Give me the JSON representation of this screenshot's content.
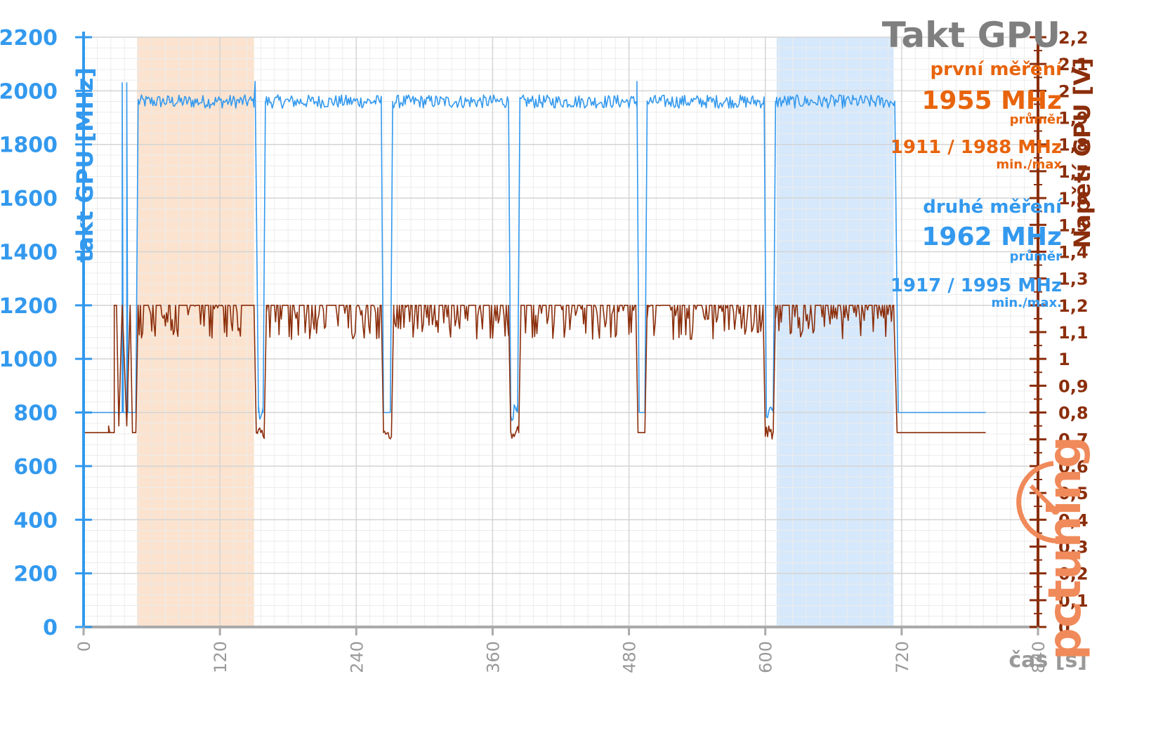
{
  "chart_data": {
    "type": "line",
    "title": "Takt GPU",
    "xlabel": "čas [s]",
    "ylabel_left": "takt GPU [MHz]",
    "ylabel_right": "Napětí GPU [V]",
    "xlim": [
      0,
      840
    ],
    "ylim_left": [
      0,
      2200
    ],
    "ylim_right": [
      0,
      2.2
    ],
    "x_ticks": [
      "0",
      "120",
      "240",
      "360",
      "480",
      "600",
      "720",
      "840"
    ],
    "y_ticks_left": [
      "0",
      "200",
      "400",
      "600",
      "800",
      "1000",
      "1200",
      "1400",
      "1600",
      "1800",
      "2000",
      "2200"
    ],
    "y_ticks_right": [
      "0",
      "0,1",
      "0,2",
      "0,3",
      "0,4",
      "0,5",
      "0,6",
      "0,7",
      "0,8",
      "0,9",
      "1",
      "1,1",
      "1,2",
      "1,3",
      "1,4",
      "1,5",
      "1,6",
      "1,7",
      "1,8",
      "1,9",
      "2",
      "2,1",
      "2,2"
    ],
    "grid": true,
    "highlight_bands": [
      {
        "x": [
          47,
          150
        ],
        "color": "#fbe3cf"
      },
      {
        "x": [
          610,
          713
        ],
        "color": "#d6e8fb"
      }
    ],
    "series": [
      {
        "axis": "left",
        "color": "#3399ee",
        "segments": [
          {
            "t0": 0,
            "t1": 46,
            "base": 800,
            "noise": 0,
            "spikes": [
              [
                34,
                2030
              ],
              [
                36,
                800
              ],
              [
                38,
                2030
              ],
              [
                40,
                800
              ]
            ]
          },
          {
            "t0": 46,
            "t1": 48,
            "ramp": [
              800,
              1960
            ]
          },
          {
            "t0": 48,
            "t1": 150,
            "base": 1960,
            "noise": 50
          },
          {
            "t0": 150,
            "t1": 154,
            "ramp": [
              1960,
              800
            ],
            "spikes": [
              [
                151,
                2035
              ]
            ]
          },
          {
            "t0": 154,
            "t1": 158,
            "base": 800,
            "noise": 60
          },
          {
            "t0": 158,
            "t1": 160,
            "ramp": [
              800,
              1960
            ]
          },
          {
            "t0": 160,
            "t1": 262,
            "base": 1960,
            "noise": 50
          },
          {
            "t0": 262,
            "t1": 264,
            "ramp": [
              1960,
              800
            ]
          },
          {
            "t0": 264,
            "t1": 270,
            "base": 800,
            "noise": 0
          },
          {
            "t0": 270,
            "t1": 272,
            "ramp": [
              800,
              1960
            ]
          },
          {
            "t0": 272,
            "t1": 374,
            "base": 1960,
            "noise": 50
          },
          {
            "t0": 374,
            "t1": 376,
            "ramp": [
              1960,
              800
            ]
          },
          {
            "t0": 376,
            "t1": 382,
            "base": 800,
            "noise": 60
          },
          {
            "t0": 382,
            "t1": 384,
            "ramp": [
              800,
              1960
            ]
          },
          {
            "t0": 384,
            "t1": 487,
            "base": 1960,
            "noise": 50
          },
          {
            "t0": 487,
            "t1": 489,
            "ramp": [
              1960,
              800
            ],
            "spikes": [
              [
                487,
                2035
              ]
            ]
          },
          {
            "t0": 489,
            "t1": 494,
            "base": 800,
            "noise": 0
          },
          {
            "t0": 494,
            "t1": 496,
            "ramp": [
              800,
              1960
            ]
          },
          {
            "t0": 496,
            "t1": 599,
            "base": 1960,
            "noise": 50
          },
          {
            "t0": 599,
            "t1": 601,
            "ramp": [
              1960,
              800
            ]
          },
          {
            "t0": 601,
            "t1": 607,
            "base": 800,
            "noise": 60
          },
          {
            "t0": 607,
            "t1": 609,
            "ramp": [
              800,
              1960
            ]
          },
          {
            "t0": 609,
            "t1": 714,
            "base": 1960,
            "noise": 50
          },
          {
            "t0": 714,
            "t1": 717,
            "ramp": [
              1960,
              800
            ]
          },
          {
            "t0": 717,
            "t1": 794,
            "base": 800,
            "noise": 0
          }
        ]
      },
      {
        "axis": "right",
        "color": "#8b2e0b",
        "segments": [
          {
            "t0": 0,
            "t1": 27,
            "base": 0.725,
            "noise": 0,
            "spikes": [
              [
                22,
                0.75
              ],
              [
                27,
                1.2
              ],
              [
                29,
                1.2
              ],
              [
                31,
                0.75
              ],
              [
                34,
                1.2
              ],
              [
                38,
                0.75
              ],
              [
                41,
                1.2
              ],
              [
                43,
                0.725
              ]
            ]
          },
          {
            "t0": 46,
            "t1": 48,
            "ramp": [
              0.725,
              1.2
            ]
          },
          {
            "t0": 48,
            "t1": 150,
            "base": 1.2,
            "noise": 0.13,
            "low": 1.06
          },
          {
            "t0": 150,
            "t1": 152,
            "ramp": [
              1.2,
              0.725
            ]
          },
          {
            "t0": 152,
            "t1": 159,
            "base": 0.725,
            "noise": 0.05
          },
          {
            "t0": 159,
            "t1": 161,
            "ramp": [
              0.725,
              1.2
            ]
          },
          {
            "t0": 161,
            "t1": 262,
            "base": 1.2,
            "noise": 0.13,
            "low": 1.06
          },
          {
            "t0": 262,
            "t1": 264,
            "ramp": [
              1.2,
              0.725
            ]
          },
          {
            "t0": 264,
            "t1": 271,
            "base": 0.725,
            "noise": 0.05
          },
          {
            "t0": 271,
            "t1": 273,
            "ramp": [
              0.725,
              1.2
            ]
          },
          {
            "t0": 273,
            "t1": 374,
            "base": 1.2,
            "noise": 0.13,
            "low": 1.06
          },
          {
            "t0": 374,
            "t1": 376,
            "ramp": [
              1.2,
              0.725
            ]
          },
          {
            "t0": 376,
            "t1": 383,
            "base": 0.725,
            "noise": 0.05
          },
          {
            "t0": 383,
            "t1": 385,
            "ramp": [
              0.725,
              1.2
            ]
          },
          {
            "t0": 385,
            "t1": 486,
            "base": 1.2,
            "noise": 0.13,
            "low": 1.06
          },
          {
            "t0": 486,
            "t1": 488,
            "ramp": [
              1.2,
              0.725
            ]
          },
          {
            "t0": 488,
            "t1": 494,
            "base": 0.725,
            "noise": 0
          },
          {
            "t0": 494,
            "t1": 496,
            "ramp": [
              0.725,
              1.2
            ]
          },
          {
            "t0": 496,
            "t1": 598,
            "base": 1.2,
            "noise": 0.13,
            "low": 1.06
          },
          {
            "t0": 598,
            "t1": 600,
            "ramp": [
              1.2,
              0.725
            ]
          },
          {
            "t0": 600,
            "t1": 607,
            "base": 0.725,
            "noise": 0.05
          },
          {
            "t0": 607,
            "t1": 609,
            "ramp": [
              0.725,
              1.2
            ]
          },
          {
            "t0": 609,
            "t1": 713,
            "base": 1.2,
            "noise": 0.13,
            "low": 1.06
          },
          {
            "t0": 713,
            "t1": 716,
            "ramp": [
              1.2,
              0.725
            ]
          },
          {
            "t0": 716,
            "t1": 794,
            "base": 0.725,
            "noise": 0
          }
        ]
      }
    ],
    "annotations": {
      "first": {
        "heading": "první měření",
        "avg": "1955 MHz",
        "avg_label": "průměr",
        "minmax": "1911 / 1988 MHz",
        "minmax_label": "min./max"
      },
      "second": {
        "heading": "druhé měření",
        "avg": "1962 MHz",
        "avg_label": "průměr",
        "minmax": "1917 / 1995 MHz",
        "minmax_label": "min./max."
      }
    },
    "logo": "pctuning"
  }
}
